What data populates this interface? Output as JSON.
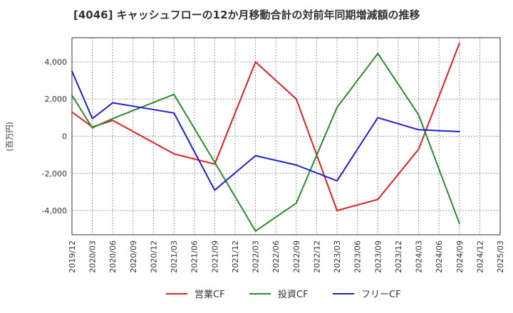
{
  "chart_data": {
    "type": "line",
    "title": "[4046]  キャッシュフローの12か月移動合計の対前年同期増減額の推移",
    "ylabel": "(百万円)",
    "xlabel": "",
    "ylim": [
      -5300,
      5300
    ],
    "yticks": [
      -4000,
      -2000,
      0,
      2000,
      4000
    ],
    "ytick_labels": [
      "-4,000",
      "-2,000",
      "0",
      "2,000",
      "4,000"
    ],
    "categories": [
      "2019/12",
      "2020/03",
      "2020/06",
      "2020/09",
      "2020/12",
      "2021/03",
      "2021/06",
      "2021/09",
      "2021/12",
      "2022/03",
      "2022/06",
      "2022/09",
      "2022/12",
      "2023/03",
      "2023/06",
      "2023/09",
      "2023/12",
      "2024/03",
      "2024/06",
      "2024/09",
      "2024/12",
      "2025/03"
    ],
    "grid": true,
    "legend_position": "bottom-center",
    "series": [
      {
        "name": "営業CF",
        "color": "#dd2222",
        "values": [
          1300,
          500,
          850,
          null,
          null,
          -950,
          null,
          -1500,
          null,
          4000,
          null,
          2000,
          null,
          -4000,
          null,
          -3400,
          null,
          -700,
          null,
          5000,
          null,
          null
        ]
      },
      {
        "name": "投資CF",
        "color": "#2d8a2d",
        "values": [
          2200,
          450,
          950,
          null,
          null,
          2250,
          null,
          -1400,
          null,
          -5100,
          null,
          -3600,
          null,
          1550,
          null,
          4450,
          null,
          1150,
          null,
          -4700,
          null,
          null
        ]
      },
      {
        "name": "フリーCF",
        "color": "#1f1fd6",
        "values": [
          3500,
          950,
          1800,
          null,
          null,
          1250,
          null,
          -2900,
          null,
          -1050,
          null,
          -1550,
          null,
          -2400,
          null,
          1000,
          null,
          350,
          null,
          250,
          null,
          null
        ]
      }
    ]
  }
}
